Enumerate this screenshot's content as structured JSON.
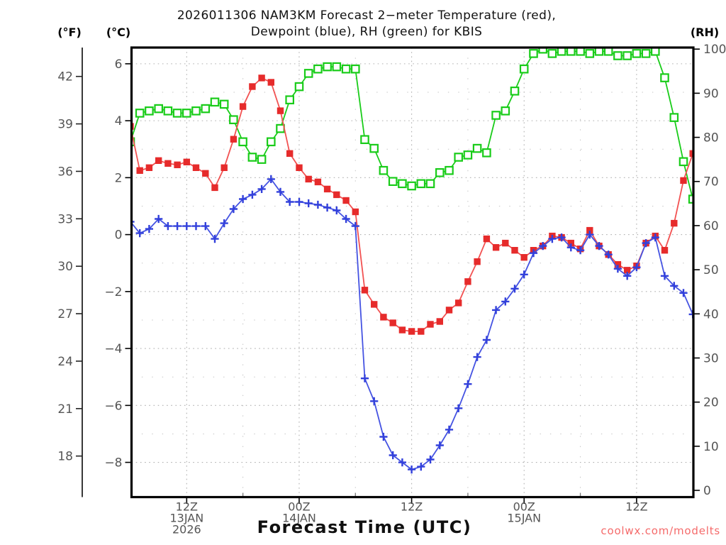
{
  "title": {
    "line1": "2026011306 NAM3KM Forecast 2−meter Temperature (red),",
    "line2": "Dewpoint (blue), RH (green) for KBIS"
  },
  "watermark": "coolwx.com/modelts",
  "colors": {
    "temperature_red": "#e62b2b",
    "temperature_line": "#f25252",
    "dewpoint_blue": "#3240db",
    "dewpoint_line": "#4553e2",
    "rh_green": "#19cc19",
    "watermark_red": "#f56a6a",
    "grid_gray": "#b0b0b0",
    "tick_text_gray": "#555555",
    "axis_black": "#000000"
  },
  "axes": {
    "left_f": {
      "label": "(°F)",
      "ticks": [
        42,
        39,
        36,
        33,
        30,
        27,
        24,
        21,
        18
      ]
    },
    "left_c": {
      "label": "(°C)",
      "ticks": [
        6,
        4,
        2,
        0,
        -2,
        -4,
        -6,
        -8
      ],
      "minor_ticks": [
        5,
        3,
        1,
        -1,
        -3,
        -5,
        -7
      ]
    },
    "right_rh": {
      "label": "(RH)",
      "ticks": [
        100,
        90,
        80,
        70,
        60,
        50,
        40,
        30,
        20,
        10,
        0
      ]
    },
    "x": {
      "label": "Forecast Time (UTC)",
      "major_ticks": [
        {
          "hour": 6,
          "time": "12Z",
          "date": "13JAN",
          "year": "2026"
        },
        {
          "hour": 18,
          "time": "00Z",
          "date": "14JAN",
          "year": ""
        },
        {
          "hour": 30,
          "time": "12Z",
          "date": "",
          "year": ""
        },
        {
          "hour": 42,
          "time": "00Z",
          "date": "15JAN",
          "year": ""
        },
        {
          "hour": 54,
          "time": "12Z",
          "date": "",
          "year": ""
        }
      ],
      "minor_tick_hours": [
        12,
        24,
        36,
        48
      ]
    }
  },
  "chart_data": {
    "type": "line",
    "title": "2026011306 NAM3KM Forecast 2−meter Temperature (red), Dewpoint (blue), RH (green) for KBIS",
    "xlabel": "Forecast Time (UTC)",
    "x_description": "Hourly forecast points, hour 0 = 06Z 13JAN 2026 (model init), hour 60 = 18Z 15JAN 2026",
    "x_hours_range": [
      0,
      60
    ],
    "ylim_c": [
      -9.2,
      6.6
    ],
    "ylim_rh": [
      0,
      100
    ],
    "grid": true,
    "series": [
      {
        "name": "2-meter Temperature",
        "units": "°C",
        "axis": "left_c",
        "color": "#e62b2b",
        "marker": "filled-square",
        "values": [
          3.8,
          2.25,
          2.35,
          2.6,
          2.5,
          2.45,
          2.55,
          2.35,
          2.15,
          1.65,
          2.35,
          3.35,
          4.5,
          5.2,
          5.5,
          5.35,
          4.35,
          2.85,
          2.35,
          1.95,
          1.85,
          1.6,
          1.4,
          1.2,
          0.8,
          -1.95,
          -2.45,
          -2.9,
          -3.1,
          -3.35,
          -3.4,
          -3.4,
          -3.15,
          -3.05,
          -2.65,
          -2.4,
          -1.65,
          -0.95,
          -0.15,
          -0.45,
          -0.3,
          -0.55,
          -0.8,
          -0.55,
          -0.4,
          -0.05,
          -0.1,
          -0.3,
          -0.5,
          0.15,
          -0.4,
          -0.7,
          -1.05,
          -1.25,
          -1.1,
          -0.3,
          -0.05,
          -0.55,
          0.4,
          1.9,
          2.85
        ]
      },
      {
        "name": "Dewpoint",
        "units": "°C",
        "axis": "left_c",
        "color": "#3240db",
        "marker": "plus",
        "values": [
          0.45,
          0.05,
          0.2,
          0.55,
          0.3,
          0.3,
          0.3,
          0.3,
          0.3,
          -0.15,
          0.4,
          0.9,
          1.25,
          1.4,
          1.6,
          1.95,
          1.5,
          1.15,
          1.15,
          1.1,
          1.05,
          0.95,
          0.85,
          0.55,
          0.3,
          -5.05,
          -5.85,
          -7.1,
          -7.75,
          -8.0,
          -8.25,
          -8.15,
          -7.9,
          -7.4,
          -6.85,
          -6.1,
          -5.25,
          -4.3,
          -3.7,
          -2.65,
          -2.35,
          -1.9,
          -1.4,
          -0.65,
          -0.4,
          -0.15,
          -0.1,
          -0.45,
          -0.55,
          0.0,
          -0.4,
          -0.7,
          -1.2,
          -1.45,
          -1.15,
          -0.3,
          -0.1,
          -1.45,
          -1.8,
          -2.05,
          -2.8
        ]
      },
      {
        "name": "RH",
        "units": "%",
        "axis": "right_rh",
        "color": "#19cc19",
        "marker": "open-square",
        "values": [
          79,
          85.5,
          86,
          86.5,
          86,
          85.5,
          85.5,
          86,
          86.5,
          88,
          87.5,
          84,
          79,
          75.5,
          75,
          79,
          82,
          88.5,
          91.5,
          94.5,
          95.5,
          96,
          96,
          95.5,
          95.5,
          79.5,
          77.5,
          72.5,
          70,
          69.5,
          69,
          69.5,
          69.5,
          72,
          72.5,
          75.5,
          76,
          77.5,
          76.5,
          85,
          86,
          90.5,
          95.5,
          99,
          100,
          99,
          99.5,
          99.5,
          99.5,
          99,
          99.5,
          99.5,
          98.5,
          98.5,
          99,
          99,
          99.5,
          93.5,
          84.5,
          74.5,
          66
        ]
      }
    ]
  }
}
